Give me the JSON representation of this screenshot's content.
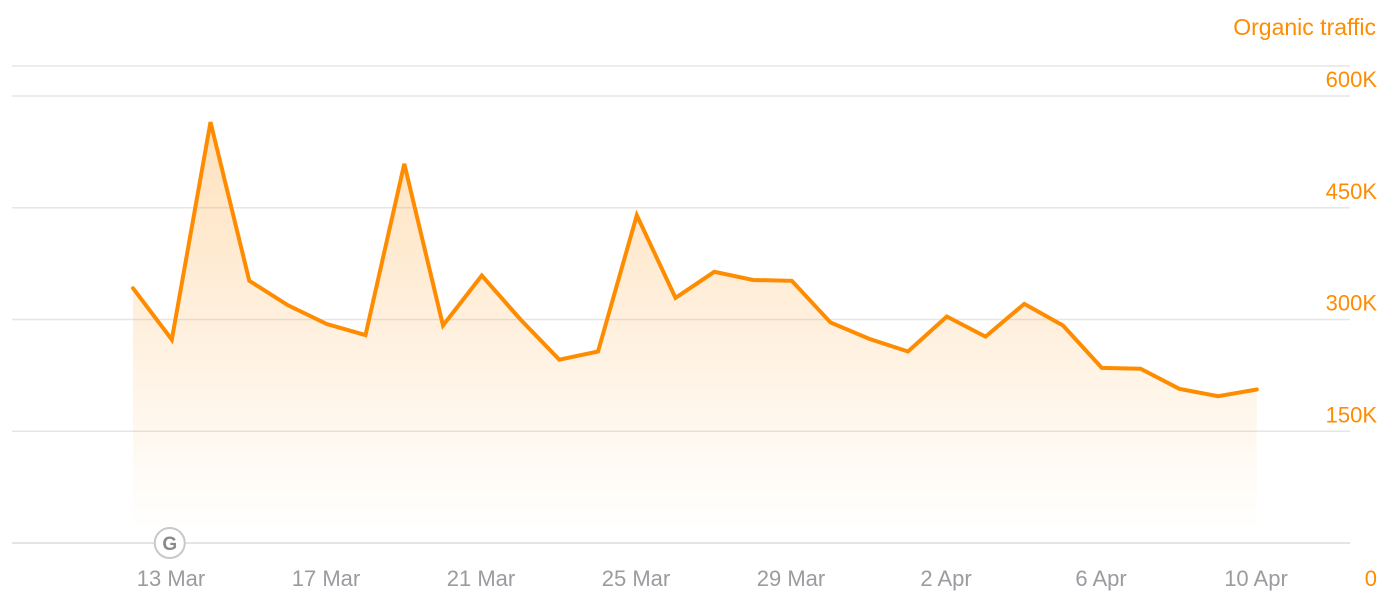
{
  "chart_data": {
    "type": "area",
    "title": "",
    "xlabel": "",
    "ylabel": "Organic traffic",
    "ylim": [
      0,
      600000
    ],
    "y_axis_side": "right",
    "grid": true,
    "legend": "none",
    "color": "#ff8c00",
    "y_ticks": [
      {
        "value": 0,
        "label": "0"
      },
      {
        "value": 150000,
        "label": "150K"
      },
      {
        "value": 300000,
        "label": "300K"
      },
      {
        "value": 450000,
        "label": "450K"
      },
      {
        "value": 600000,
        "label": "600K"
      }
    ],
    "x_ticks": [
      {
        "date": "2023-03-13",
        "label": "13 Mar"
      },
      {
        "date": "2023-03-17",
        "label": "17 Mar"
      },
      {
        "date": "2023-03-21",
        "label": "21 Mar"
      },
      {
        "date": "2023-03-25",
        "label": "25 Mar"
      },
      {
        "date": "2023-03-29",
        "label": "29 Mar"
      },
      {
        "date": "2023-04-02",
        "label": "2 Apr"
      },
      {
        "date": "2023-04-06",
        "label": "6 Apr"
      },
      {
        "date": "2023-04-10",
        "label": "10 Apr"
      }
    ],
    "series": [
      {
        "x": [
          "2023-03-13",
          "2023-03-14",
          "2023-03-15",
          "2023-03-16",
          "2023-03-17",
          "2023-03-18",
          "2023-03-19",
          "2023-03-20",
          "2023-03-21",
          "2023-03-22",
          "2023-03-23",
          "2023-03-24",
          "2023-03-25",
          "2023-03-26",
          "2023-03-27",
          "2023-03-28",
          "2023-03-29",
          "2023-03-30",
          "2023-03-31",
          "2023-04-01",
          "2023-04-02",
          "2023-04-03",
          "2023-04-04",
          "2023-04-05",
          "2023-04-06",
          "2023-04-07",
          "2023-04-08",
          "2023-04-09",
          "2023-04-10",
          "2023-04-11"
        ],
        "values": [
          342000,
          273000,
          565000,
          352000,
          319000,
          294000,
          279000,
          509000,
          292000,
          359000,
          300000,
          246000,
          257000,
          440000,
          329000,
          364000,
          353000,
          352000,
          296000,
          274000,
          257000,
          304000,
          277000,
          321000,
          292000,
          235000,
          234000,
          207000,
          197000,
          206000
        ]
      }
    ],
    "annotations": [
      {
        "date": "2023-03-14",
        "icon": "google-update-icon",
        "text": "G"
      }
    ]
  }
}
